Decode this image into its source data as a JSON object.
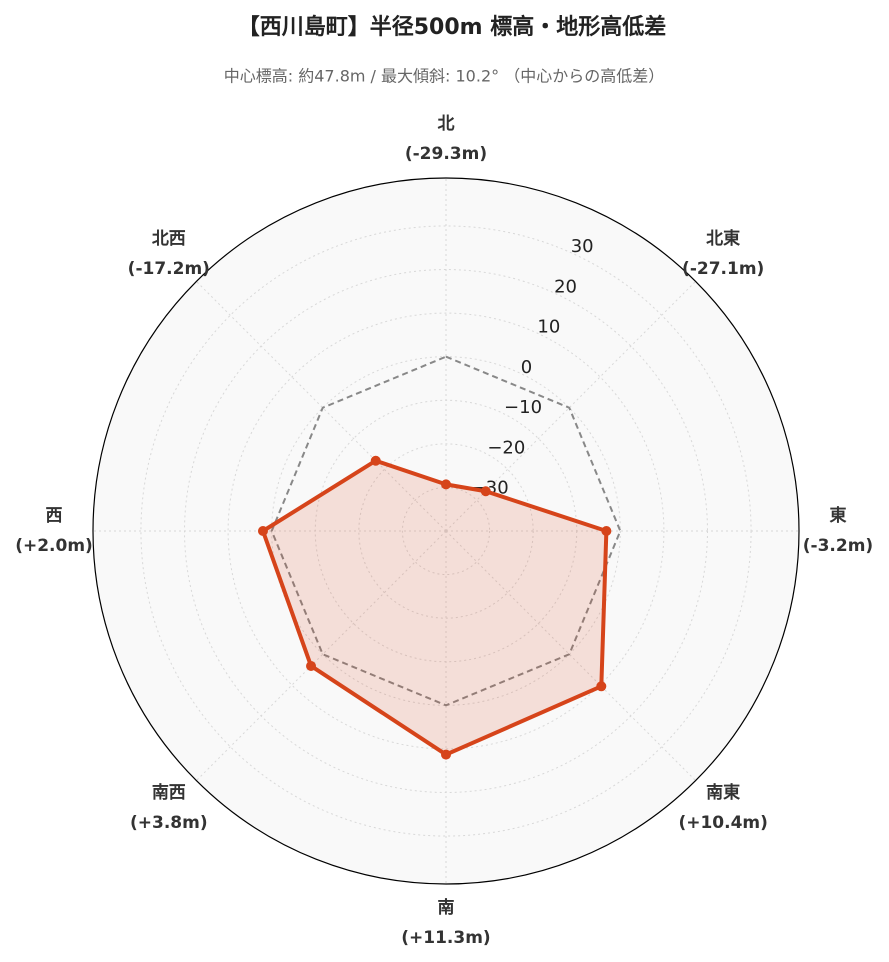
{
  "chart_data": {
    "type": "radar",
    "title": "【西川島町】半径500m 標高・地形高低差",
    "subtitle": "中心標高: 約47.8m / 最大傾斜: 10.2° （中心からの高低差）",
    "categories": [
      "北",
      "北東",
      "東",
      "南東",
      "南",
      "南西",
      "西",
      "北西"
    ],
    "values": [
      -29.3,
      -27.1,
      -3.2,
      10.4,
      11.3,
      3.8,
      2.0,
      -17.2
    ],
    "value_labels": [
      "(-29.3m)",
      "(-27.1m)",
      "(-3.2m)",
      "(+10.4m)",
      "(+11.3m)",
      "(+3.8m)",
      "(+2.0m)",
      "(-17.2m)"
    ],
    "color": "#d6441a",
    "reference_value": 0,
    "ylim": [
      -40,
      41
    ],
    "yticks": [
      {
        "value": -30,
        "label": "−30"
      },
      {
        "value": -20,
        "label": "−20"
      },
      {
        "value": -10,
        "label": "−10"
      },
      0,
      10,
      20,
      30
    ],
    "grid": true
  }
}
